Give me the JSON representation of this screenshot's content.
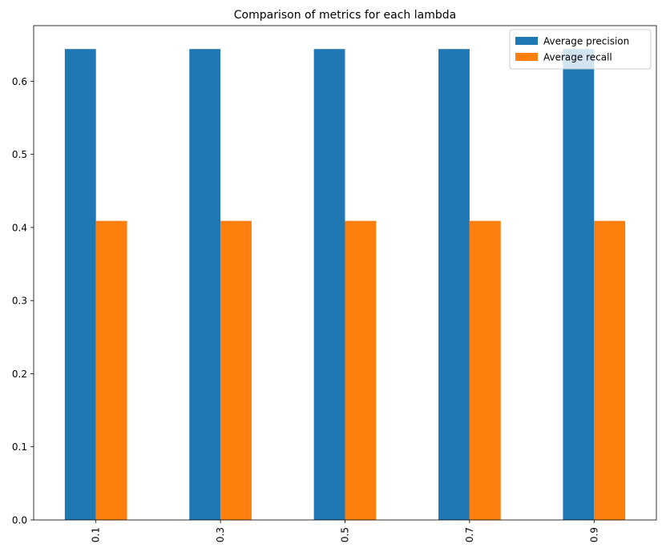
{
  "chart_data": {
    "type": "bar",
    "title": "Comparison of metrics for each lambda",
    "xlabel": "",
    "ylabel": "",
    "categories": [
      "0.1",
      "0.3",
      "0.5",
      "0.7",
      "0.9"
    ],
    "series": [
      {
        "name": "Average precision",
        "color": "#1f77b4",
        "values": [
          0.644,
          0.644,
          0.644,
          0.644,
          0.644
        ]
      },
      {
        "name": "Average recall",
        "color": "#ff7f0e",
        "values": [
          0.409,
          0.409,
          0.409,
          0.409,
          0.409
        ]
      }
    ],
    "ylim": [
      0,
      0.676
    ],
    "yticks": [
      "0.0",
      "0.1",
      "0.2",
      "0.3",
      "0.4",
      "0.5",
      "0.6"
    ],
    "xtick_rotation": "vertical",
    "grid": false,
    "legend_position": "top-right"
  }
}
